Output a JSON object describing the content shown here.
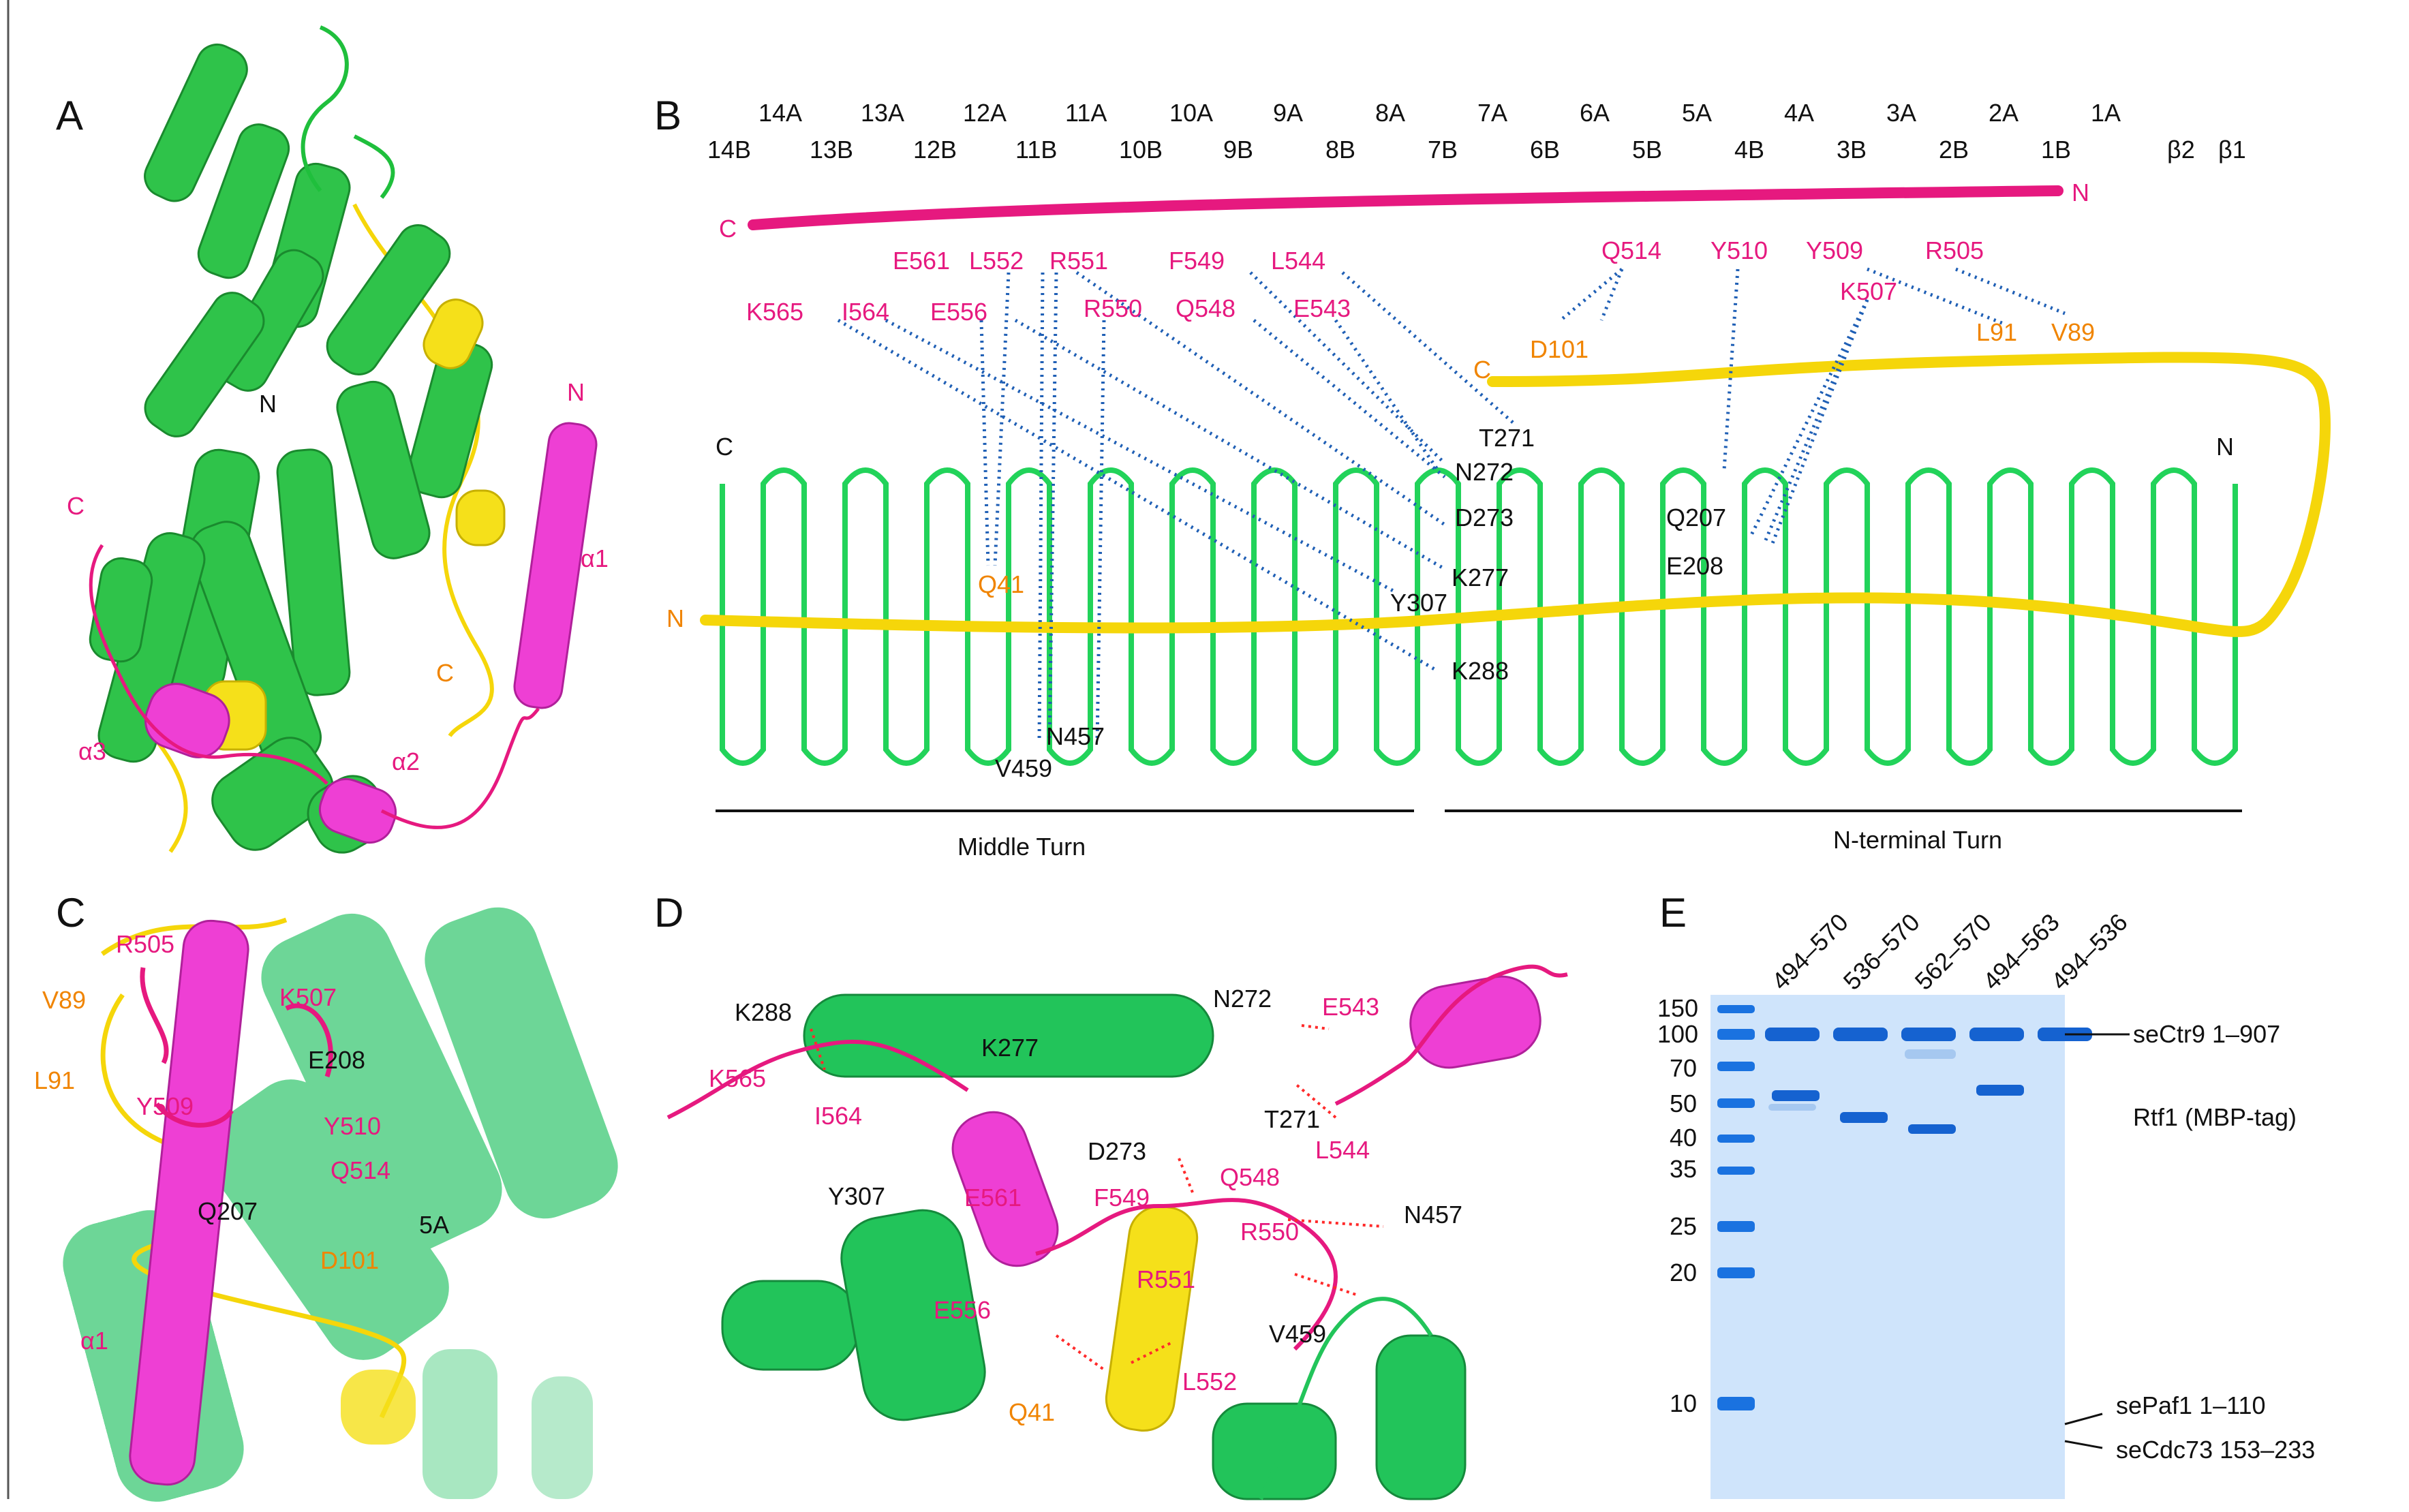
{
  "panels": {
    "A": {
      "label": "A",
      "annotations": {
        "n_green": "N",
        "n_pink": "N",
        "c_pink": "C",
        "c_yellow": "C",
        "a1": "α1",
        "a2": "α2",
        "a3": "α3"
      }
    },
    "B": {
      "label": "B",
      "repeats_top": [
        "14A",
        "13A",
        "12A",
        "11A",
        "10A",
        "9A",
        "8A",
        "7A",
        "6A",
        "5A",
        "4A",
        "3A",
        "2A",
        "1A"
      ],
      "repeats_bottom": [
        "14B",
        "13B",
        "12B",
        "11B",
        "10B",
        "9B",
        "8B",
        "7B",
        "6B",
        "5B",
        "4B",
        "3B",
        "2B",
        "1B",
        "β2",
        "β1"
      ],
      "pink_ends": {
        "c": "C",
        "n": "N"
      },
      "yellow_ends": {
        "c": "C",
        "n": "N"
      },
      "green_ends": {
        "c": "C",
        "n": "N"
      },
      "rtf1_residues": [
        "Q514",
        "Y510",
        "Y509",
        "R505",
        "K507",
        "E561",
        "L552",
        "R551",
        "F549",
        "L544",
        "K565",
        "I564",
        "E556",
        "R550",
        "Q548",
        "E543"
      ],
      "paf_residues": [
        "D101",
        "L91",
        "V89",
        "Q41"
      ],
      "ctr9_residues": [
        "T271",
        "N272",
        "D273",
        "Q207",
        "E208",
        "K277",
        "Y307",
        "K288",
        "N457",
        "V459"
      ],
      "turns": {
        "middle": "Middle Turn",
        "nterm": "N-terminal Turn"
      }
    },
    "C": {
      "label": "C",
      "residues": [
        "R505",
        "V89",
        "K507",
        "E208",
        "L91",
        "Y509",
        "Y510",
        "Q514",
        "Q207",
        "5A",
        "D101",
        "α1"
      ]
    },
    "D": {
      "label": "D",
      "residues": [
        "K288",
        "N272",
        "E543",
        "K277",
        "K565",
        "I564",
        "T271",
        "D273",
        "L544",
        "Y307",
        "E561",
        "F549",
        "Q548",
        "N457",
        "R550",
        "R551",
        "E556",
        "V459",
        "L552",
        "Q41"
      ]
    },
    "E": {
      "label": "E",
      "lanes": [
        "494–570",
        "536–570",
        "562–570",
        "494–563",
        "494–536"
      ],
      "markers": [
        "150",
        "100",
        "70",
        "50",
        "40",
        "35",
        "25",
        "20",
        "10"
      ],
      "bands": {
        "ctr9": "seCtr9 1–907",
        "rtf1": "Rtf1 (MBP-tag)",
        "paf1": "sePaf1 1–110",
        "cdc73": "seCdc73 153–233"
      }
    }
  }
}
